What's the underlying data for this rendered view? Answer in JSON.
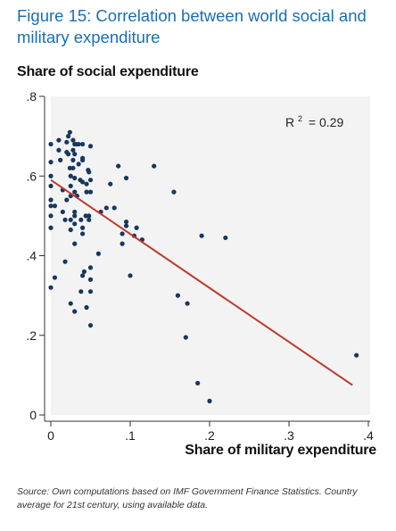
{
  "figure_title": "Figure 15: Correlation between world social and military expenditure",
  "source_note": "Source: Own computations based on IMF Government Finance Statistics. Country average for 21st century, using available data.",
  "chart_data": {
    "type": "scatter",
    "title": "Figure 15: Correlation between world social and military expenditure",
    "xlabel": "Share of military expenditure",
    "ylabel": "Share of social expenditure",
    "xlim": [
      0,
      0.4
    ],
    "ylim": [
      0,
      0.8
    ],
    "x_ticks": [
      0,
      0.1,
      0.2,
      0.3,
      0.4
    ],
    "x_tick_labels": [
      "0",
      ".1",
      ".2",
      ".3",
      ".4"
    ],
    "y_ticks": [
      0,
      0.2,
      0.4,
      0.6,
      0.8
    ],
    "y_tick_labels": [
      "0",
      ".2",
      ".4",
      ".6",
      ".8"
    ],
    "grid": false,
    "annotation": {
      "label": "R",
      "superscript": "2",
      "value": "= 0.29"
    },
    "colors": {
      "points": "#17375e",
      "fit_line": "#c0392b",
      "plot_bg": "#f3f3f3"
    },
    "fit_line": {
      "x": [
        0,
        0.38
      ],
      "y": [
        0.59,
        0.075
      ]
    },
    "points": [
      [
        0.0,
        0.68
      ],
      [
        0.0,
        0.635
      ],
      [
        0.0,
        0.6
      ],
      [
        0.0,
        0.575
      ],
      [
        0.0,
        0.54
      ],
      [
        0.0,
        0.525
      ],
      [
        0.0,
        0.5
      ],
      [
        0.0,
        0.47
      ],
      [
        0.0,
        0.32
      ],
      [
        0.005,
        0.345
      ],
      [
        0.005,
        0.525
      ],
      [
        0.01,
        0.665
      ],
      [
        0.01,
        0.69
      ],
      [
        0.012,
        0.64
      ],
      [
        0.015,
        0.565
      ],
      [
        0.015,
        0.51
      ],
      [
        0.018,
        0.49
      ],
      [
        0.018,
        0.385
      ],
      [
        0.02,
        0.66
      ],
      [
        0.02,
        0.685
      ],
      [
        0.02,
        0.54
      ],
      [
        0.022,
        0.7
      ],
      [
        0.022,
        0.655
      ],
      [
        0.024,
        0.71
      ],
      [
        0.024,
        0.62
      ],
      [
        0.025,
        0.6
      ],
      [
        0.025,
        0.575
      ],
      [
        0.025,
        0.55
      ],
      [
        0.025,
        0.49
      ],
      [
        0.025,
        0.465
      ],
      [
        0.025,
        0.28
      ],
      [
        0.028,
        0.69
      ],
      [
        0.028,
        0.665
      ],
      [
        0.028,
        0.64
      ],
      [
        0.028,
        0.62
      ],
      [
        0.03,
        0.68
      ],
      [
        0.03,
        0.655
      ],
      [
        0.03,
        0.595
      ],
      [
        0.03,
        0.56
      ],
      [
        0.03,
        0.51
      ],
      [
        0.03,
        0.5
      ],
      [
        0.03,
        0.48
      ],
      [
        0.03,
        0.43
      ],
      [
        0.03,
        0.26
      ],
      [
        0.032,
        0.68
      ],
      [
        0.033,
        0.55
      ],
      [
        0.035,
        0.68
      ],
      [
        0.035,
        0.63
      ],
      [
        0.037,
        0.59
      ],
      [
        0.038,
        0.49
      ],
      [
        0.038,
        0.31
      ],
      [
        0.04,
        0.68
      ],
      [
        0.04,
        0.645
      ],
      [
        0.04,
        0.64
      ],
      [
        0.04,
        0.585
      ],
      [
        0.04,
        0.47
      ],
      [
        0.04,
        0.455
      ],
      [
        0.04,
        0.35
      ],
      [
        0.042,
        0.36
      ],
      [
        0.044,
        0.5
      ],
      [
        0.045,
        0.58
      ],
      [
        0.045,
        0.56
      ],
      [
        0.045,
        0.27
      ],
      [
        0.047,
        0.615
      ],
      [
        0.048,
        0.61
      ],
      [
        0.048,
        0.5
      ],
      [
        0.048,
        0.49
      ],
      [
        0.05,
        0.675
      ],
      [
        0.05,
        0.59
      ],
      [
        0.05,
        0.56
      ],
      [
        0.05,
        0.37
      ],
      [
        0.05,
        0.34
      ],
      [
        0.05,
        0.31
      ],
      [
        0.05,
        0.225
      ],
      [
        0.06,
        0.405
      ],
      [
        0.063,
        0.51
      ],
      [
        0.07,
        0.52
      ],
      [
        0.075,
        0.58
      ],
      [
        0.08,
        0.52
      ],
      [
        0.085,
        0.625
      ],
      [
        0.09,
        0.455
      ],
      [
        0.09,
        0.43
      ],
      [
        0.095,
        0.595
      ],
      [
        0.095,
        0.485
      ],
      [
        0.095,
        0.475
      ],
      [
        0.1,
        0.35
      ],
      [
        0.105,
        0.45
      ],
      [
        0.108,
        0.47
      ],
      [
        0.115,
        0.44
      ],
      [
        0.13,
        0.625
      ],
      [
        0.155,
        0.56
      ],
      [
        0.16,
        0.3
      ],
      [
        0.17,
        0.195
      ],
      [
        0.172,
        0.28
      ],
      [
        0.185,
        0.08
      ],
      [
        0.19,
        0.45
      ],
      [
        0.2,
        0.035
      ],
      [
        0.22,
        0.445
      ],
      [
        0.385,
        0.15
      ]
    ]
  }
}
